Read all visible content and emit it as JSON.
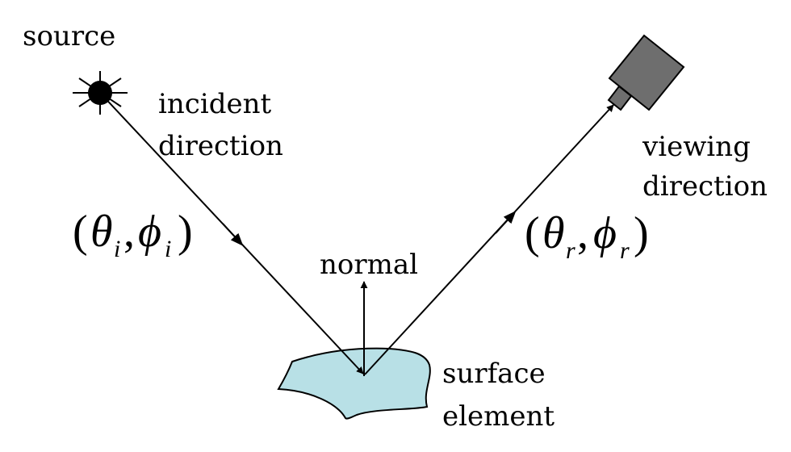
{
  "labels": {
    "source": "source",
    "incident_line1": "incident",
    "incident_line2": "direction",
    "viewing_line1": "viewing",
    "viewing_line2": "direction",
    "normal": "normal",
    "surface_line1": "surface",
    "surface_line2": "element"
  },
  "incident_angle": {
    "open": "(",
    "theta": "θ",
    "theta_sub": "i",
    "comma": ",",
    "phi": "ϕ",
    "phi_sub": "i",
    "close": ")"
  },
  "reflected_angle": {
    "open": "(",
    "theta": "θ",
    "theta_sub": "r",
    "comma": ",",
    "phi": "ϕ",
    "phi_sub": "r",
    "close": ")"
  },
  "colors": {
    "surface_fill": "#b8e0e6",
    "camera_body": "#6e6e6e",
    "lines": "#000000"
  },
  "icons": {
    "source": "sun-icon",
    "camera": "camera-icon"
  }
}
